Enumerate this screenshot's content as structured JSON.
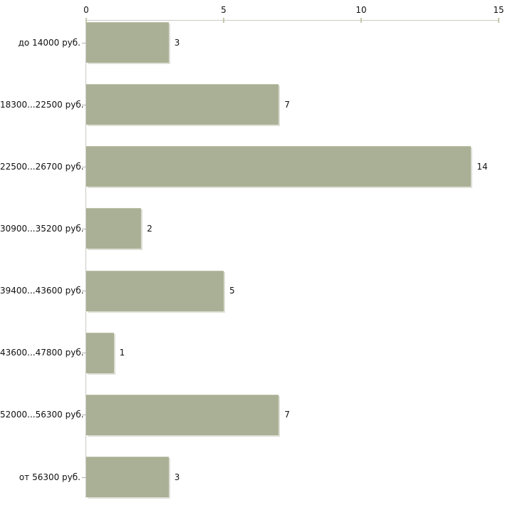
{
  "chart_data": {
    "type": "bar",
    "orientation": "horizontal",
    "title": "",
    "xlabel": "",
    "ylabel": "",
    "categories": [
      "до 14000 руб.",
      "18300...22500 руб.",
      "22500...26700 руб.",
      "30900...35200 руб.",
      "39400...43600 руб.",
      "43600...47800 руб.",
      "52000...56300 руб.",
      "от 56300 руб."
    ],
    "values": [
      3,
      7,
      14,
      2,
      5,
      1,
      7,
      3
    ],
    "value_labels": [
      "3",
      "7",
      "14",
      "2",
      "5",
      "1",
      "7",
      "3"
    ],
    "xlim": [
      0,
      15
    ],
    "x_ticks": [
      "0",
      "5",
      "10",
      "15"
    ],
    "axis_side": "top",
    "grid": false,
    "legend": false,
    "colors": {
      "bar_fill": "#aab095",
      "bar_edge_top": "#bfc3ac",
      "bar_edge_light": "#dedfd6",
      "axis_line": "#c9c9c3",
      "x_tick_mark": "#c4c8ac",
      "y_tick_mark": "#b0b0aa",
      "text": "#111111",
      "background": "#ffffff"
    }
  }
}
